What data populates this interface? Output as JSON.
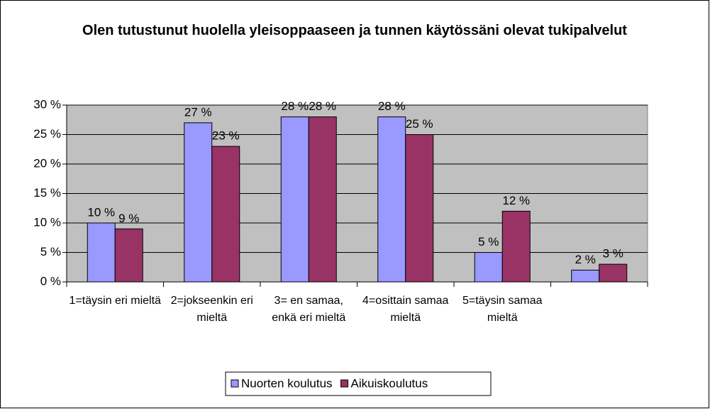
{
  "chart_data": {
    "type": "bar",
    "title": "Olen tutustunut huolella yleisoppaaseen ja tunnen käytössäni olevat tukipalvelut",
    "categories": [
      "1=täysin eri mieltä",
      "2=jokseenkin eri mieltä",
      "3= en samaa, enkä eri mieltä",
      "4=osittain samaa mieltä",
      "5=täysin samaa mieltä",
      null
    ],
    "series": [
      {
        "name": "Nuorten koulutus",
        "color": "#9999ff",
        "values": [
          10,
          27,
          28,
          28,
          5,
          2
        ],
        "value_labels": [
          "10 %",
          "27 %",
          "28 %",
          "28 %",
          "5 %",
          "2 %"
        ]
      },
      {
        "name": "Aikuiskoulutus",
        "color": "#993366",
        "values": [
          9,
          23,
          28,
          25,
          12,
          3
        ],
        "value_labels": [
          "9 %",
          "23 %",
          "28 %",
          "25 %",
          "12 %",
          "3 %"
        ]
      }
    ],
    "ylim": [
      0,
      30
    ],
    "yticks": [
      {
        "value": 0,
        "label": "0 %"
      },
      {
        "value": 5,
        "label": "5 %"
      },
      {
        "value": 10,
        "label": "10 %"
      },
      {
        "value": 15,
        "label": "15 %"
      },
      {
        "value": 20,
        "label": "20 %"
      },
      {
        "value": 25,
        "label": "25 %"
      },
      {
        "value": 30,
        "label": "30 %"
      }
    ],
    "grid": true,
    "legend": "bottom",
    "plot_background": "#c0c0c0"
  }
}
